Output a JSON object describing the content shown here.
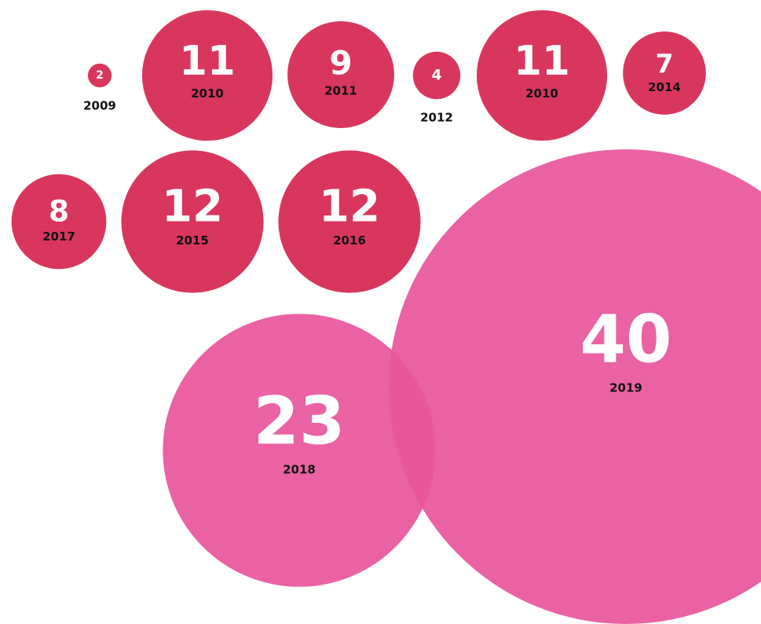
{
  "chart_data": {
    "type": "bubble",
    "categories": [
      "2009",
      "2010",
      "2011",
      "2012",
      "2010",
      "2014",
      "2017",
      "2015",
      "2016",
      "2018",
      "2019"
    ],
    "values": [
      2,
      11,
      9,
      4,
      11,
      7,
      8,
      12,
      12,
      23,
      40
    ],
    "colors": [
      "#d9365e",
      "#d9365e",
      "#d9365e",
      "#d9365e",
      "#d9365e",
      "#d9365e",
      "#d9365e",
      "#d9365e",
      "#d9365e",
      "#e8559b",
      "#e8559b"
    ]
  }
}
